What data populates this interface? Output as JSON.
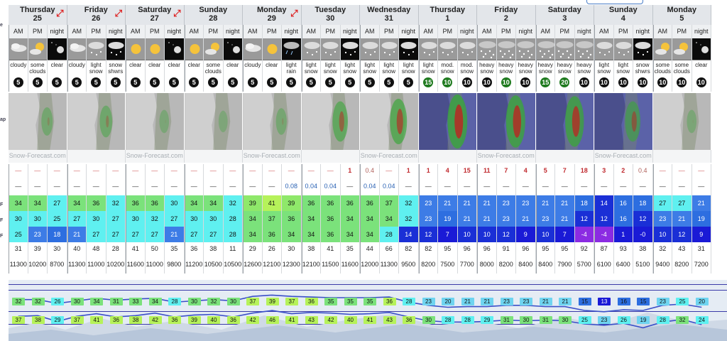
{
  "periods": [
    "AM",
    "PM",
    "night"
  ],
  "days": [
    {
      "name": "Thursday",
      "num": "25",
      "arrow": true
    },
    {
      "name": "Friday",
      "num": "26",
      "arrow": true
    },
    {
      "name": "Saturday",
      "num": "27",
      "arrow": true
    },
    {
      "name": "Sunday",
      "num": "28",
      "arrow": false
    },
    {
      "name": "Monday",
      "num": "29",
      "arrow": true
    },
    {
      "name": "Tuesday",
      "num": "30",
      "arrow": false
    },
    {
      "name": "Wednesday",
      "num": "31",
      "arrow": false
    },
    {
      "name": "Thursday",
      "num": "1",
      "arrow": false
    },
    {
      "name": "Friday",
      "num": "2",
      "arrow": false
    },
    {
      "name": "Saturday",
      "num": "3",
      "arrow": false
    },
    {
      "name": "Sunday",
      "num": "4",
      "arrow": false
    },
    {
      "name": "Monday",
      "num": "5",
      "arrow": false
    }
  ],
  "left_labels": [
    "e",
    "ap",
    "F",
    "F",
    "F"
  ],
  "icons": [
    "cloudy",
    "partly-cloudy-sun",
    "clear-night",
    "cloudy",
    "snow",
    "snow-shower-night",
    "sun",
    "sun",
    "clear-night",
    "sun",
    "partly-cloudy-sun",
    "clear-night",
    "cloudy",
    "sun",
    "rain-night",
    "snow",
    "snow",
    "snow-night",
    "snow",
    "snow",
    "snow-night",
    "snow",
    "snow",
    "snow",
    "heavy-snow",
    "heavy-snow",
    "heavy-snow",
    "heavy-snow",
    "heavy-snow",
    "heavy-snow",
    "snow",
    "snow",
    "snow-shower-night",
    "partly-cloudy-sun",
    "partly-cloudy-sun",
    "clear-night"
  ],
  "descriptions": [
    "cloudy",
    "some clouds",
    "clear",
    "cloudy",
    "light snow",
    "snow shwrs",
    "clear",
    "clear",
    "clear",
    "clear",
    "some clouds",
    "clear",
    "cloudy",
    "clear",
    "light rain",
    "light snow",
    "light snow",
    "light snow",
    "light snow",
    "light snow",
    "light snow",
    "light snow",
    "mod. snow",
    "mod. snow",
    "heavy snow",
    "heavy snow",
    "heavy snow",
    "heavy snow",
    "heavy snow",
    "heavy snow",
    "light snow",
    "light snow",
    "snow shwrs",
    "some clouds",
    "some clouds",
    "clear"
  ],
  "wind": [
    "5",
    "5",
    "5",
    "5",
    "5",
    "5",
    "5",
    "5",
    "5",
    "5",
    "5",
    "5",
    "5",
    "5",
    "5",
    "5",
    "5",
    "5",
    "5",
    "5",
    "5",
    "15",
    "10",
    "10",
    "10",
    "10",
    "10",
    "15",
    "20",
    "10",
    "10",
    "10",
    "10",
    "10",
    "10",
    "10"
  ],
  "wind_green": [
    false,
    false,
    false,
    false,
    false,
    false,
    false,
    false,
    false,
    false,
    false,
    false,
    false,
    false,
    false,
    false,
    false,
    false,
    false,
    false,
    false,
    true,
    true,
    false,
    false,
    true,
    false,
    true,
    true,
    false,
    false,
    false,
    false,
    false,
    false,
    false
  ],
  "map_logo": "Snow-Forecast.com",
  "snow": [
    "—",
    "—",
    "—",
    "—",
    "—",
    "—",
    "—",
    "—",
    "—",
    "—",
    "—",
    "—",
    "—",
    "—",
    "—",
    "—",
    "—",
    "1",
    "0.4",
    "—",
    "1",
    "1",
    "4",
    "15",
    "11",
    "7",
    "4",
    "5",
    "7",
    "18",
    "3",
    "2",
    "0.4",
    "—",
    "—",
    "—"
  ],
  "rain": [
    "—",
    "—",
    "—",
    "—",
    "—",
    "—",
    "—",
    "—",
    "—",
    "—",
    "—",
    "—",
    "—",
    "—",
    "0.08",
    "0.04",
    "0.04",
    "—",
    "0.04",
    "0.04",
    "—",
    "—",
    "—",
    "—",
    "—",
    "—",
    "—",
    "—",
    "—",
    "—",
    "—",
    "—",
    "—",
    "—",
    "—",
    "—"
  ],
  "temp_max": [
    "34",
    "34",
    "27",
    "34",
    "36",
    "32",
    "36",
    "36",
    "30",
    "34",
    "34",
    "32",
    "39",
    "41",
    "39",
    "36",
    "36",
    "36",
    "36",
    "37",
    "32",
    "23",
    "21",
    "21",
    "21",
    "23",
    "23",
    "21",
    "21",
    "18",
    "14",
    "16",
    "18",
    "27",
    "27",
    "21"
  ],
  "temp_min": [
    "30",
    "30",
    "25",
    "27",
    "30",
    "27",
    "30",
    "32",
    "27",
    "30",
    "30",
    "28",
    "34",
    "37",
    "36",
    "34",
    "36",
    "34",
    "34",
    "34",
    "32",
    "23",
    "19",
    "21",
    "21",
    "23",
    "21",
    "23",
    "21",
    "12",
    "12",
    "16",
    "12",
    "23",
    "21",
    "19"
  ],
  "temp_chill": [
    "25",
    "23",
    "18",
    "21",
    "27",
    "27",
    "27",
    "27",
    "21",
    "27",
    "27",
    "28",
    "34",
    "36",
    "34",
    "34",
    "36",
    "34",
    "34",
    "28",
    "14",
    "12",
    "7",
    "10",
    "10",
    "12",
    "9",
    "10",
    "7",
    "-4",
    "-4",
    "1",
    "-0",
    "10",
    "12",
    "9"
  ],
  "humidity": [
    "31",
    "39",
    "30",
    "40",
    "48",
    "28",
    "41",
    "50",
    "35",
    "36",
    "38",
    "11",
    "29",
    "26",
    "30",
    "38",
    "41",
    "35",
    "44",
    "66",
    "82",
    "82",
    "95",
    "96",
    "96",
    "91",
    "96",
    "95",
    "95",
    "92",
    "87",
    "93",
    "38",
    "32",
    "43",
    "31"
  ],
  "freezing": [
    "11300",
    "10200",
    "8700",
    "11300",
    "11000",
    "10200",
    "11600",
    "11000",
    "9800",
    "11200",
    "10500",
    "10500",
    "12600",
    "12100",
    "12300",
    "12100",
    "11500",
    "11600",
    "12000",
    "11300",
    "9500",
    "8200",
    "7500",
    "7700",
    "8000",
    "8200",
    "8400",
    "8400",
    "7900",
    "5700",
    "6100",
    "6400",
    "5100",
    "9400",
    "8200",
    "7200"
  ],
  "graph_top": [
    "32",
    "32",
    "26",
    "30",
    "34",
    "31",
    "33",
    "34",
    "28",
    "30",
    "32",
    "30",
    "37",
    "39",
    "37",
    "36",
    "35",
    "35",
    "35",
    "36",
    "28",
    "23",
    "20",
    "21",
    "21",
    "23",
    "23",
    "21",
    "21",
    "15",
    "13",
    "16",
    "15",
    "23",
    "25",
    "20"
  ],
  "graph_bottom": [
    "37",
    "38",
    "29",
    "37",
    "41",
    "36",
    "38",
    "42",
    "36",
    "39",
    "40",
    "36",
    "42",
    "46",
    "41",
    "43",
    "42",
    "40",
    "41",
    "43",
    "36",
    "30",
    "28",
    "28",
    "29",
    "31",
    "30",
    "31",
    "30",
    "25",
    "23",
    "26",
    "19",
    "28",
    "32",
    "24"
  ],
  "colors": {
    "header_bg": "#e3e6ea",
    "cold_blue": "#1a2fd6",
    "mid_blue": "#2d6ee0",
    "cyan": "#5ff0f0",
    "green": "#7be27b",
    "lime": "#b6f25a",
    "purple": "#8b2be2",
    "snow_red": "#c0282d",
    "rain_blue": "#2a62b4"
  }
}
